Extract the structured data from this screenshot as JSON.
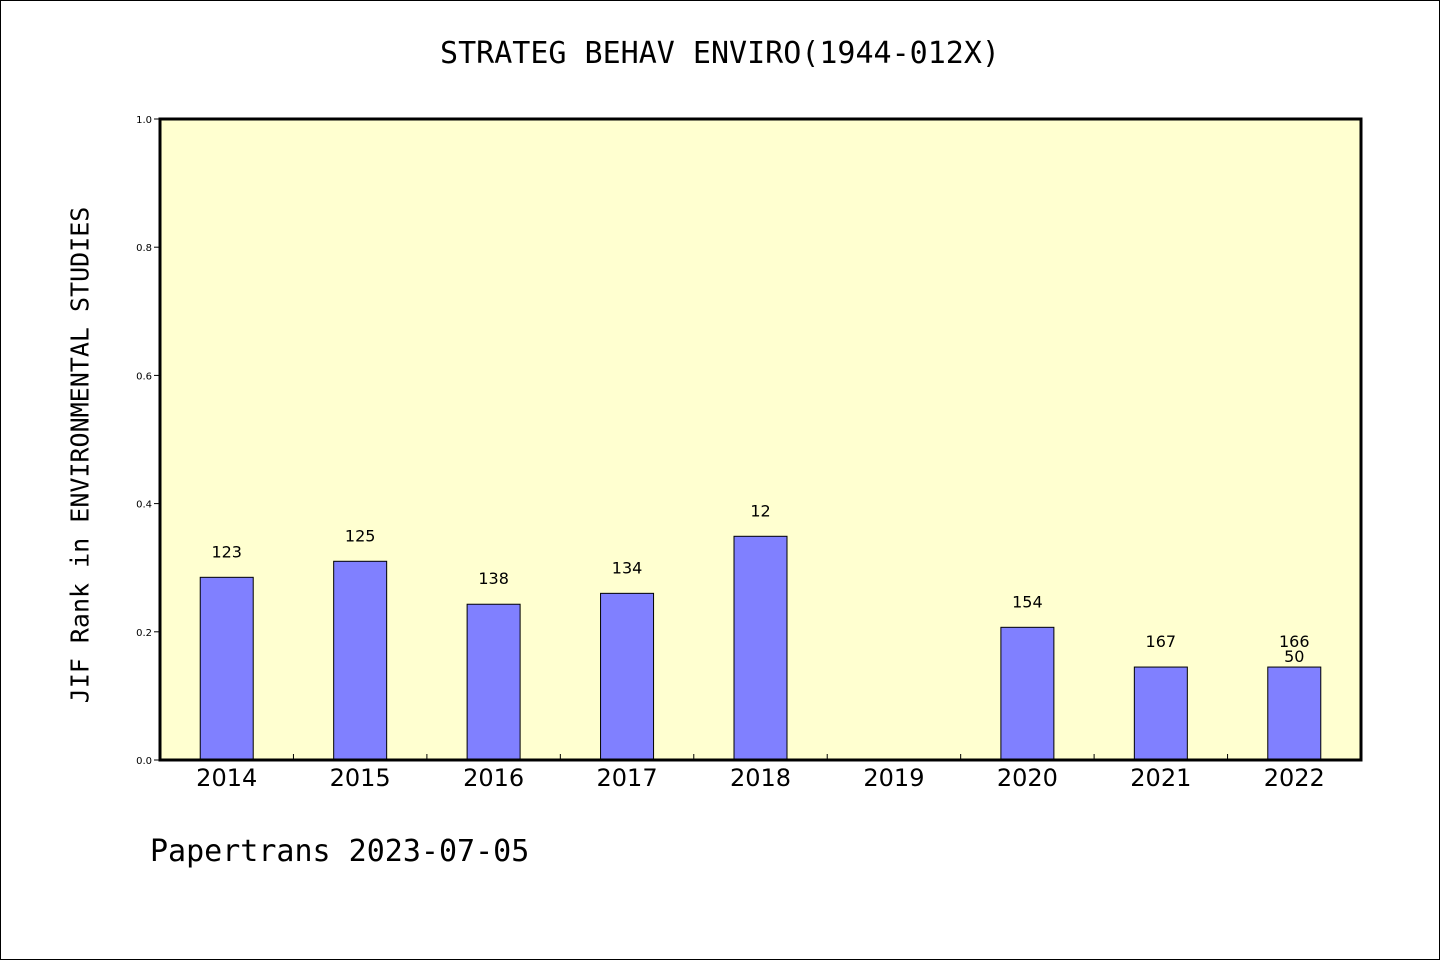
{
  "chart_data": {
    "type": "bar",
    "title": "STRATEG BEHAV ENVIRO(1944-012X)",
    "ylabel": "JIF Rank in ENVIRONMENTAL STUDIES",
    "xlabel": "",
    "categories": [
      "2014",
      "2015",
      "2016",
      "2017",
      "2018",
      "2019",
      "2020",
      "2021",
      "2022"
    ],
    "values": [
      0.285,
      0.31,
      0.243,
      0.26,
      0.349,
      null,
      0.207,
      0.145,
      0.145
    ],
    "bar_labels": [
      [
        "123"
      ],
      [
        "125"
      ],
      [
        "138"
      ],
      [
        "134"
      ],
      [
        "12"
      ],
      [],
      [
        "154"
      ],
      [
        "167"
      ],
      [
        "166",
        "50"
      ]
    ],
    "ylim": [
      0,
      1.0
    ],
    "yticks": [
      "0.0",
      "0.2",
      "0.4",
      "0.6",
      "0.8",
      "1.0"
    ],
    "grid": false,
    "colors": {
      "plot_background": "#ffffd0",
      "bar_fill": "#8080ff",
      "bar_edge": "#000000"
    }
  },
  "footer": {
    "text": "Papertrans 2023-07-05"
  }
}
